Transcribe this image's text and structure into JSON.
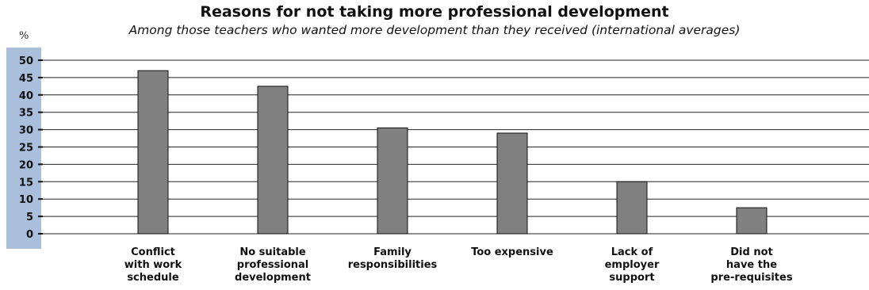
{
  "chart_data": {
    "type": "bar",
    "title": "Reasons for not taking more professional development",
    "subtitle": "Among those teachers who wanted more development than they received (international averages)",
    "ylabel": "%",
    "xlabel": "",
    "ylim": [
      0,
      50
    ],
    "yticks": [
      0,
      5,
      10,
      15,
      20,
      25,
      30,
      35,
      40,
      45,
      50
    ],
    "grid": true,
    "categories": [
      [
        "Conflict",
        "with work",
        "schedule"
      ],
      [
        "No suitable",
        "professional",
        "development"
      ],
      [
        "Family",
        "responsibilities"
      ],
      [
        "Too expensive"
      ],
      [
        "Lack of",
        "employer",
        "support"
      ],
      [
        "Did not",
        "have the",
        "pre-requisites"
      ]
    ],
    "values": [
      47,
      42.5,
      30.5,
      29,
      15,
      7.5
    ],
    "colors": {
      "bar": "#808080",
      "bar_stroke": "#111111",
      "axis_band": "#a9bfdc",
      "grid": "#222222"
    }
  }
}
